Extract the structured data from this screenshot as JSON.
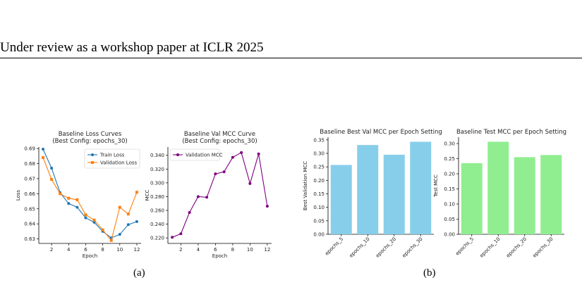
{
  "header": {
    "text": "Under review as a workshop paper at ICLR 2025"
  },
  "captions": {
    "a": "(a)",
    "b": "(b)"
  },
  "chart_data": [
    {
      "type": "line",
      "title": "Baseline Loss Curves\n(Best Config: epochs_30)",
      "xlabel": "Epoch",
      "ylabel": "Loss",
      "xlim": [
        0.5,
        12.5
      ],
      "ylim": [
        0.627,
        0.691
      ],
      "xticks": [
        2,
        4,
        6,
        8,
        10,
        12
      ],
      "yticks": [
        0.63,
        0.64,
        0.65,
        0.66,
        0.67,
        0.68,
        0.69
      ],
      "legend": "upper-right",
      "grid": false,
      "x": [
        1,
        2,
        3,
        4,
        5,
        6,
        7,
        8,
        9,
        10,
        11,
        12
      ],
      "series": [
        {
          "name": "Train Loss",
          "color": "#1f77b4",
          "values": [
            0.6896,
            0.677,
            0.6607,
            0.6535,
            0.651,
            0.644,
            0.641,
            0.635,
            0.6307,
            0.633,
            0.6395,
            0.6415
          ]
        },
        {
          "name": "Validation Loss",
          "color": "#ff7f0e",
          "values": [
            0.684,
            0.6695,
            0.66,
            0.657,
            0.656,
            0.646,
            0.6425,
            0.636,
            0.629,
            0.651,
            0.6465,
            0.661
          ]
        }
      ]
    },
    {
      "type": "line",
      "title": "Baseline Val MCC Curve\n(Best Config: epochs_30)",
      "xlabel": "Epoch",
      "ylabel": "MCC",
      "xlim": [
        0.5,
        12.5
      ],
      "ylim": [
        0.212,
        0.352
      ],
      "xticks": [
        2,
        4,
        6,
        8,
        10,
        12
      ],
      "yticks": [
        0.22,
        0.24,
        0.26,
        0.28,
        0.3,
        0.32,
        0.34
      ],
      "legend": "upper-left",
      "grid": false,
      "x": [
        1,
        2,
        3,
        4,
        5,
        6,
        7,
        8,
        9,
        10,
        11,
        12
      ],
      "series": [
        {
          "name": "Validation MCC",
          "color": "#800080",
          "values": [
            0.221,
            0.226,
            0.257,
            0.28,
            0.279,
            0.313,
            0.316,
            0.337,
            0.344,
            0.299,
            0.342,
            0.266
          ]
        }
      ]
    },
    {
      "type": "bar",
      "title": "Baseline Best Val MCC per Epoch Setting",
      "xlabel": "",
      "ylabel": "Best Validation MCC",
      "categories": [
        "epochs_5",
        "epochs_10",
        "epochs_20",
        "epochs_30"
      ],
      "values": [
        0.257,
        0.331,
        0.295,
        0.343
      ],
      "color": "#87ceeb",
      "ylim": [
        0,
        0.36
      ],
      "yticks": [
        0.0,
        0.05,
        0.1,
        0.15,
        0.2,
        0.25,
        0.3,
        0.35
      ]
    },
    {
      "type": "bar",
      "title": "Baseline Test MCC per Epoch Setting",
      "xlabel": "",
      "ylabel": "Test MCC",
      "categories": [
        "epochs_5",
        "epochs_10",
        "epochs_20",
        "epochs_30"
      ],
      "values": [
        0.235,
        0.306,
        0.255,
        0.262
      ],
      "color": "#90ee90",
      "ylim": [
        0,
        0.321
      ],
      "yticks": [
        0.0,
        0.05,
        0.1,
        0.15,
        0.2,
        0.25,
        0.3
      ]
    }
  ]
}
